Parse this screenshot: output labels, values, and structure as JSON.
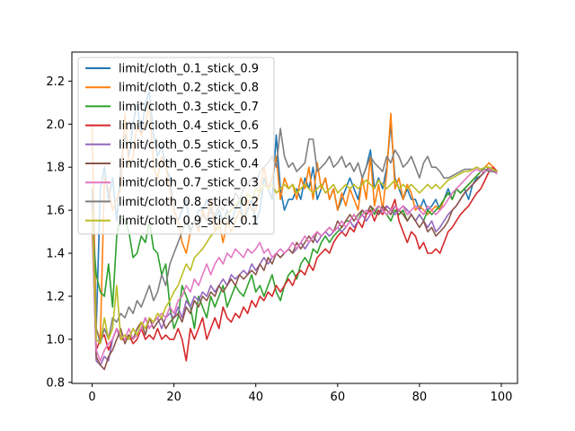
{
  "chart_data": {
    "type": "line",
    "title": "",
    "xlabel": "",
    "ylabel": "",
    "xlim": [
      -4.95,
      103.95
    ],
    "ylim": [
      0.795,
      2.335
    ],
    "xticks": [
      0,
      20,
      40,
      60,
      80,
      100
    ],
    "yticks": [
      0.8,
      1.0,
      1.2,
      1.4,
      1.6,
      1.8,
      2.0,
      2.2
    ],
    "xtick_labels": [
      "0",
      "20",
      "40",
      "60",
      "80",
      "100"
    ],
    "ytick_labels": [
      "0.8",
      "1.0",
      "1.2",
      "1.4",
      "1.6",
      "1.8",
      "2.0",
      "2.2"
    ],
    "grid": false,
    "legend_position": "upper-left",
    "series": [
      {
        "name": "limit/cloth_0.1_stick_0.9",
        "color": "#1f77b4",
        "values": [
          1.7,
          1.05,
          1.7,
          1.8,
          1.65,
          1.75,
          1.55,
          1.8,
          1.95,
          1.85,
          2.0,
          2.1,
          1.95,
          2.1,
          2.15,
          1.95,
          1.85,
          1.9,
          1.8,
          1.75,
          1.6,
          1.55,
          1.6,
          1.65,
          1.5,
          1.55,
          1.6,
          1.6,
          1.65,
          1.6,
          1.55,
          1.6,
          1.55,
          1.6,
          1.55,
          1.6,
          1.65,
          1.55,
          1.6,
          1.65,
          1.55,
          1.6,
          1.75,
          1.7,
          1.65,
          1.95,
          1.7,
          1.6,
          1.65,
          1.65,
          1.7,
          1.65,
          1.75,
          1.7,
          1.8,
          1.65,
          1.7,
          1.75,
          1.65,
          1.7,
          1.6,
          1.65,
          1.7,
          1.75,
          1.7,
          1.65,
          1.75,
          1.8,
          1.88,
          1.7,
          1.75,
          1.7,
          1.8,
          2.0,
          1.75,
          1.7,
          1.65,
          1.7,
          1.65,
          1.65,
          1.6,
          1.65,
          1.6,
          1.62,
          1.65,
          1.6,
          1.65,
          1.7,
          1.65,
          1.7,
          1.68,
          1.7,
          1.65,
          1.72,
          1.75,
          1.76,
          1.78,
          1.79,
          1.78,
          1.78
        ]
      },
      {
        "name": "limit/cloth_0.2_stick_0.8",
        "color": "#ff7f0e",
        "values": [
          2.0,
          1.05,
          1.0,
          1.75,
          1.7,
          1.6,
          1.65,
          1.7,
          2.05,
          1.8,
          1.85,
          2.0,
          1.95,
          2.0,
          2.1,
          1.8,
          1.75,
          1.85,
          1.8,
          1.7,
          1.6,
          1.55,
          1.45,
          1.4,
          1.5,
          1.55,
          1.5,
          1.6,
          1.55,
          1.65,
          1.5,
          1.55,
          1.45,
          1.55,
          1.5,
          1.55,
          1.6,
          1.55,
          1.65,
          1.6,
          1.6,
          1.7,
          1.8,
          1.7,
          1.75,
          1.85,
          1.65,
          1.75,
          1.7,
          1.72,
          1.65,
          1.75,
          1.7,
          1.8,
          1.65,
          1.82,
          1.7,
          1.75,
          1.65,
          1.7,
          1.6,
          1.68,
          1.62,
          1.7,
          1.65,
          1.6,
          1.75,
          1.65,
          1.85,
          1.62,
          1.72,
          1.6,
          1.78,
          2.05,
          1.7,
          1.75,
          1.65,
          1.72,
          1.68,
          1.6,
          1.62,
          1.6,
          1.58,
          1.6,
          1.62,
          1.6,
          1.65,
          1.68,
          1.65,
          1.7,
          1.68,
          1.7,
          1.72,
          1.74,
          1.76,
          1.78,
          1.8,
          1.82,
          1.8,
          1.78
        ]
      },
      {
        "name": "limit/cloth_0.3_stick_0.7",
        "color": "#2ca02c",
        "values": [
          1.55,
          1.3,
          1.22,
          1.2,
          1.35,
          1.15,
          1.48,
          1.58,
          1.55,
          1.5,
          1.38,
          1.4,
          1.48,
          1.45,
          1.55,
          1.42,
          1.4,
          1.3,
          1.35,
          1.15,
          1.05,
          1.1,
          1.25,
          1.2,
          1.15,
          1.05,
          1.2,
          1.15,
          1.1,
          1.2,
          1.15,
          1.2,
          1.25,
          1.15,
          1.2,
          1.25,
          1.22,
          1.2,
          1.25,
          1.3,
          1.22,
          1.25,
          1.2,
          1.25,
          1.3,
          1.22,
          1.18,
          1.25,
          1.3,
          1.32,
          1.28,
          1.35,
          1.38,
          1.35,
          1.42,
          1.4,
          1.45,
          1.48,
          1.45,
          1.48,
          1.5,
          1.52,
          1.55,
          1.55,
          1.58,
          1.55,
          1.6,
          1.58,
          1.62,
          1.58,
          1.62,
          1.6,
          1.58,
          1.55,
          1.6,
          1.58,
          1.6,
          1.55,
          1.58,
          1.55,
          1.58,
          1.55,
          1.6,
          1.58,
          1.6,
          1.62,
          1.65,
          1.68,
          1.65,
          1.7,
          1.68,
          1.7,
          1.72,
          1.74,
          1.76,
          1.78,
          1.8,
          1.8,
          1.79,
          1.78
        ]
      },
      {
        "name": "limit/cloth_0.4_stick_0.6",
        "color": "#d62728",
        "values": [
          1.6,
          0.95,
          1.0,
          1.02,
          0.95,
          1.0,
          1.05,
          1.0,
          1.0,
          1.02,
          0.98,
          1.0,
          1.05,
          1.0,
          1.02,
          1.0,
          1.05,
          1.0,
          1.02,
          1.0,
          1.0,
          1.05,
          1.0,
          0.9,
          1.05,
          1.0,
          1.05,
          1.1,
          1.0,
          1.05,
          1.1,
          1.05,
          1.15,
          1.1,
          1.08,
          1.12,
          1.1,
          1.15,
          1.12,
          1.18,
          1.15,
          1.2,
          1.18,
          1.22,
          1.2,
          1.25,
          1.22,
          1.25,
          1.28,
          1.25,
          1.3,
          1.32,
          1.3,
          1.35,
          1.32,
          1.38,
          1.4,
          1.42,
          1.4,
          1.45,
          1.48,
          1.5,
          1.48,
          1.52,
          1.5,
          1.55,
          1.52,
          1.58,
          1.6,
          1.55,
          1.6,
          1.58,
          1.62,
          1.6,
          1.65,
          1.55,
          1.5,
          1.45,
          1.5,
          1.48,
          1.42,
          1.45,
          1.4,
          1.4,
          1.42,
          1.4,
          1.45,
          1.5,
          1.52,
          1.55,
          1.58,
          1.6,
          1.62,
          1.65,
          1.68,
          1.7,
          1.74,
          1.78,
          1.8,
          1.78
        ]
      },
      {
        "name": "limit/cloth_0.5_stick_0.5",
        "color": "#9467bd",
        "values": [
          1.55,
          0.9,
          0.88,
          0.92,
          0.9,
          1.0,
          1.05,
          1.0,
          1.02,
          1.0,
          1.05,
          1.02,
          1.05,
          1.1,
          1.05,
          1.08,
          1.1,
          1.05,
          1.1,
          1.12,
          1.1,
          1.15,
          1.1,
          1.18,
          1.15,
          1.2,
          1.18,
          1.22,
          1.2,
          1.25,
          1.22,
          1.25,
          1.28,
          1.25,
          1.3,
          1.28,
          1.3,
          1.32,
          1.3,
          1.35,
          1.32,
          1.35,
          1.38,
          1.35,
          1.38,
          1.4,
          1.38,
          1.4,
          1.42,
          1.4,
          1.42,
          1.45,
          1.42,
          1.45,
          1.48,
          1.45,
          1.48,
          1.5,
          1.48,
          1.5,
          1.52,
          1.5,
          1.52,
          1.55,
          1.52,
          1.55,
          1.58,
          1.55,
          1.58,
          1.6,
          1.58,
          1.6,
          1.62,
          1.6,
          1.58,
          1.6,
          1.62,
          1.6,
          1.58,
          1.55,
          1.58,
          1.55,
          1.52,
          1.55,
          1.5,
          1.52,
          1.55,
          1.58,
          1.6,
          1.62,
          1.65,
          1.68,
          1.7,
          1.72,
          1.74,
          1.76,
          1.78,
          1.79,
          1.78,
          1.77
        ]
      },
      {
        "name": "limit/cloth_0.6_stick_0.4",
        "color": "#8c564b",
        "values": [
          1.65,
          0.92,
          0.88,
          0.86,
          0.92,
          0.95,
          1.0,
          1.05,
          0.98,
          1.02,
          1.0,
          1.05,
          1.08,
          1.02,
          1.1,
          1.05,
          1.08,
          1.1,
          1.05,
          1.08,
          1.1,
          1.12,
          1.08,
          1.15,
          1.12,
          1.18,
          1.15,
          1.2,
          1.18,
          1.22,
          1.2,
          1.25,
          1.22,
          1.25,
          1.28,
          1.25,
          1.3,
          1.28,
          1.3,
          1.32,
          1.3,
          1.35,
          1.32,
          1.38,
          1.35,
          1.4,
          1.38,
          1.4,
          1.42,
          1.4,
          1.45,
          1.42,
          1.45,
          1.48,
          1.45,
          1.5,
          1.48,
          1.5,
          1.52,
          1.5,
          1.55,
          1.52,
          1.55,
          1.58,
          1.55,
          1.58,
          1.6,
          1.58,
          1.62,
          1.6,
          1.58,
          1.62,
          1.6,
          1.58,
          1.62,
          1.6,
          1.58,
          1.55,
          1.58,
          1.55,
          1.52,
          1.55,
          1.5,
          1.52,
          1.48,
          1.5,
          1.52,
          1.55,
          1.6,
          1.62,
          1.65,
          1.68,
          1.7,
          1.72,
          1.74,
          1.76,
          1.78,
          1.8,
          1.79,
          1.78
        ]
      },
      {
        "name": "limit/cloth_0.7_stick_0.3",
        "color": "#e377c2",
        "values": [
          1.5,
          0.95,
          0.9,
          0.95,
          0.98,
          1.0,
          1.05,
          1.02,
          1.0,
          1.05,
          1.0,
          1.02,
          1.05,
          1.1,
          1.05,
          1.08,
          1.1,
          1.12,
          1.1,
          1.15,
          1.12,
          1.18,
          1.2,
          1.25,
          1.22,
          1.28,
          1.25,
          1.3,
          1.35,
          1.3,
          1.35,
          1.38,
          1.35,
          1.4,
          1.38,
          1.42,
          1.4,
          1.38,
          1.42,
          1.4,
          1.42,
          1.45,
          1.4,
          1.42,
          1.38,
          1.4,
          1.42,
          1.4,
          1.42,
          1.45,
          1.42,
          1.45,
          1.48,
          1.45,
          1.48,
          1.5,
          1.48,
          1.5,
          1.52,
          1.5,
          1.52,
          1.55,
          1.52,
          1.55,
          1.58,
          1.55,
          1.58,
          1.6,
          1.58,
          1.6,
          1.62,
          1.6,
          1.58,
          1.6,
          1.62,
          1.6,
          1.62,
          1.58,
          1.6,
          1.62,
          1.6,
          1.58,
          1.62,
          1.6,
          1.58,
          1.6,
          1.62,
          1.65,
          1.68,
          1.7,
          1.72,
          1.74,
          1.76,
          1.78,
          1.79,
          1.78,
          1.78,
          1.79,
          1.78,
          1.77
        ]
      },
      {
        "name": "limit/cloth_0.8_stick_0.2",
        "color": "#7f7f7f",
        "values": [
          1.7,
          1.05,
          0.98,
          1.05,
          1.0,
          1.1,
          1.08,
          1.12,
          1.1,
          1.15,
          1.12,
          1.18,
          1.15,
          1.2,
          1.25,
          1.18,
          1.22,
          1.3,
          1.25,
          1.35,
          1.4,
          1.45,
          1.5,
          1.55,
          1.5,
          1.55,
          1.52,
          1.58,
          1.55,
          1.6,
          1.58,
          1.62,
          1.6,
          1.65,
          1.62,
          1.68,
          1.65,
          1.7,
          1.72,
          1.75,
          1.72,
          1.78,
          1.8,
          1.82,
          1.85,
          1.8,
          1.98,
          1.85,
          1.8,
          1.82,
          1.78,
          1.8,
          1.82,
          1.93,
          1.93,
          1.78,
          1.8,
          1.82,
          1.85,
          1.8,
          1.82,
          1.85,
          1.8,
          1.82,
          1.78,
          1.82,
          1.75,
          1.8,
          1.85,
          1.82,
          1.8,
          1.78,
          1.85,
          1.82,
          1.88,
          1.85,
          1.8,
          1.82,
          1.85,
          1.8,
          1.75,
          1.82,
          1.85,
          1.8,
          1.8,
          1.78,
          1.75,
          1.75,
          1.76,
          1.77,
          1.78,
          1.79,
          1.79,
          1.79,
          1.8,
          1.79,
          1.79,
          1.78,
          1.78,
          1.78
        ]
      },
      {
        "name": "limit/cloth_0.9_stick_0.1",
        "color": "#bcbd22",
        "values": [
          1.6,
          1.0,
          0.98,
          1.1,
          1.0,
          1.05,
          1.25,
          1.0,
          1.02,
          1.0,
          1.05,
          1.02,
          1.08,
          1.05,
          1.1,
          1.08,
          1.12,
          1.1,
          1.15,
          1.18,
          1.22,
          1.25,
          1.3,
          1.35,
          1.32,
          1.38,
          1.4,
          1.42,
          1.45,
          1.48,
          1.5,
          1.52,
          1.55,
          1.58,
          1.6,
          1.62,
          1.65,
          1.62,
          1.68,
          1.65,
          1.7,
          1.68,
          1.72,
          1.7,
          1.72,
          1.68,
          1.7,
          1.72,
          1.7,
          1.72,
          1.68,
          1.7,
          1.72,
          1.7,
          1.68,
          1.7,
          1.72,
          1.68,
          1.7,
          1.72,
          1.68,
          1.7,
          1.72,
          1.7,
          1.72,
          1.7,
          1.72,
          1.74,
          1.72,
          1.7,
          1.74,
          1.72,
          1.7,
          1.72,
          1.74,
          1.7,
          1.72,
          1.7,
          1.72,
          1.7,
          1.68,
          1.7,
          1.72,
          1.7,
          1.72,
          1.7,
          1.72,
          1.74,
          1.75,
          1.76,
          1.77,
          1.78,
          1.78,
          1.79,
          1.8,
          1.79,
          1.8,
          1.8,
          1.79,
          1.78
        ]
      }
    ]
  }
}
